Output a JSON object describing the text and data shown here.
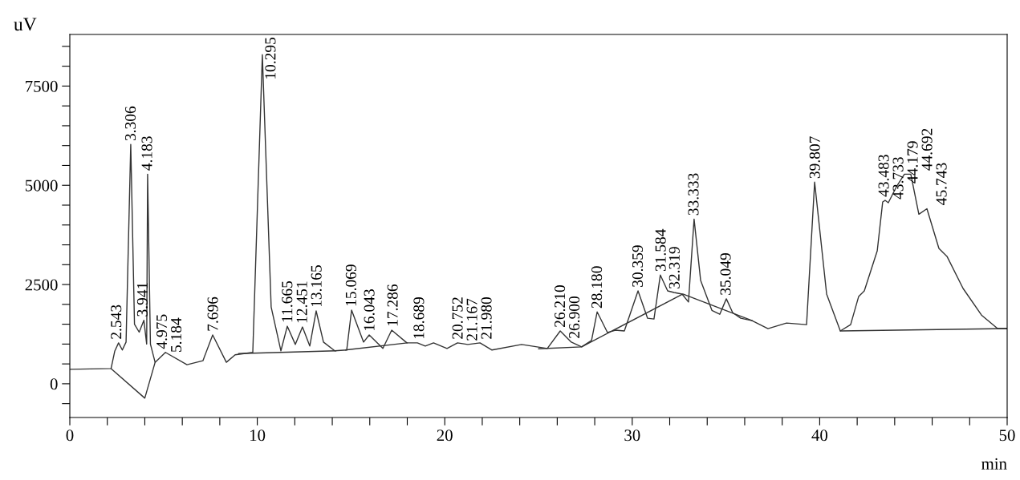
{
  "chart_data": {
    "type": "line",
    "xlabel": "min",
    "ylabel": "uV",
    "xlim": [
      0,
      50
    ],
    "ylim": [
      -850,
      8800
    ],
    "xticks": [
      0,
      {
        "value": 2,
        "label": null
      },
      {
        "value": 4,
        "label": null
      },
      {
        "value": 6,
        "label": null
      },
      {
        "value": 8,
        "label": null
      },
      10,
      {
        "value": 12,
        "label": null
      },
      {
        "value": 14,
        "label": null
      },
      {
        "value": 16,
        "label": null
      },
      {
        "value": 18,
        "label": null
      },
      20,
      {
        "value": 22,
        "label": null
      },
      {
        "value": 24,
        "label": null
      },
      {
        "value": 26,
        "label": null
      },
      {
        "value": 28,
        "label": null
      },
      30,
      {
        "value": 32,
        "label": null
      },
      {
        "value": 34,
        "label": null
      },
      {
        "value": 36,
        "label": null
      },
      {
        "value": 38,
        "label": null
      },
      40,
      {
        "value": 42,
        "label": null
      },
      {
        "value": 44,
        "label": null
      },
      {
        "value": 46,
        "label": null
      },
      {
        "value": 48,
        "label": null
      },
      50
    ],
    "yticks": [
      {
        "value": -500,
        "label": null
      },
      0,
      {
        "value": 500,
        "label": null
      },
      {
        "value": 1000,
        "label": null
      },
      {
        "value": 1500,
        "label": null
      },
      {
        "value": 2000,
        "label": null
      },
      2500,
      {
        "value": 3000,
        "label": null
      },
      {
        "value": 3500,
        "label": null
      },
      {
        "value": 4000,
        "label": null
      },
      {
        "value": 4500,
        "label": null
      },
      5000,
      {
        "value": 5500,
        "label": null
      },
      {
        "value": 6000,
        "label": null
      },
      {
        "value": 6500,
        "label": null
      },
      {
        "value": 7000,
        "label": null
      },
      7500,
      {
        "value": 8000,
        "label": null
      },
      {
        "value": 8500,
        "label": null
      }
    ],
    "grid": false,
    "series": [
      {
        "color": "#333333",
        "x": [
          0,
          2.2,
          2.4,
          2.6,
          2.8,
          3.0,
          3.25,
          3.45,
          3.7,
          3.95,
          4.1,
          4.15,
          4.3,
          4.55,
          5.1,
          6.25,
          7.1,
          7.62,
          8.35,
          8.82,
          9.76,
          10.27,
          10.74,
          11.26,
          11.6,
          12.03,
          12.41,
          12.8,
          13.14,
          13.53,
          14.13,
          14.77,
          15.03,
          15.67,
          15.97,
          16.7,
          17.17,
          17.98,
          18.54,
          18.96,
          19.4,
          20.12,
          20.68,
          21.23,
          21.88,
          22.52,
          24.1,
          25.47,
          26.16,
          26.75,
          27.3,
          27.83,
          28.13,
          28.68,
          29.1,
          29.58,
          30.31,
          30.82,
          31.16,
          31.5,
          31.89,
          32.23,
          32.66,
          33.0,
          33.3,
          33.65,
          34.25,
          34.67,
          35.02,
          35.36,
          35.79,
          36.39,
          37.24,
          38.23,
          39.3,
          39.73,
          40.37,
          41.1,
          41.65,
          42.08,
          42.38,
          43.07,
          43.36,
          43.49,
          43.66,
          44.09,
          44.52,
          44.86,
          45.29,
          45.72,
          46.36,
          46.79,
          47.65,
          48.63,
          49.49,
          50
        ],
        "values": [
          363,
          383,
          827,
          1030,
          850,
          1050,
          6030,
          1500,
          1300,
          1600,
          1000,
          5280,
          1000,
          540,
          790,
          480,
          580,
          1230,
          540,
          730,
          790,
          8290,
          1935,
          830,
          1450,
          990,
          1430,
          950,
          1835,
          1050,
          830,
          850,
          1855,
          1050,
          1230,
          890,
          1350,
          1030,
          1030,
          950,
          1030,
          890,
          1030,
          990,
          1030,
          850,
          990,
          890,
          1330,
          1050,
          930,
          1090,
          1810,
          1290,
          1350,
          1330,
          2340,
          1650,
          1630,
          2740,
          2340,
          2300,
          2260,
          2060,
          4150,
          2600,
          1850,
          1750,
          2140,
          1790,
          1650,
          1590,
          1390,
          1530,
          1490,
          5080,
          2260,
          1330,
          1490,
          2200,
          2340,
          3350,
          4580,
          4620,
          4560,
          4960,
          5280,
          5280,
          4270,
          4410,
          3410,
          3210,
          2400,
          1730,
          1390,
          1390
        ]
      },
      {
        "color": "#333333",
        "x": [
          2.2,
          4.0,
          4.55,
          6.0,
          9.0,
          14.2,
          14.5,
          14.7,
          18.0,
          20.0,
          25.0,
          27.3,
          32.7,
          36.4,
          39.0,
          41.1,
          50
        ],
        "values": [
          383,
          -363,
          540,
          null,
          760,
          830,
          null,
          850,
          1030,
          null,
          880,
          930,
          2260,
          1590,
          null,
          1330,
          1390
        ]
      }
    ],
    "annotations": [
      {
        "text": "2.543",
        "x": 2.543,
        "y": 1030
      },
      {
        "text": "3.306",
        "x": 3.306,
        "y": 6030
      },
      {
        "text": "3.941",
        "x": 3.941,
        "y": 1600
      },
      {
        "text": "4.183",
        "x": 4.183,
        "y": 5280
      },
      {
        "text": "4.975",
        "x": 4.975,
        "y": 790
      },
      {
        "text": "5.184",
        "x": 5.184,
        "y": 700
      },
      {
        "text": "7.696",
        "x": 7.696,
        "y": 1230
      },
      {
        "text": "10.295",
        "x": 10.295,
        "y": 8290
      },
      {
        "text": "11.665",
        "x": 11.665,
        "y": 1450
      },
      {
        "text": "12.451",
        "x": 12.451,
        "y": 1430
      },
      {
        "text": "13.165",
        "x": 13.165,
        "y": 1835
      },
      {
        "text": "15.069",
        "x": 15.069,
        "y": 1855
      },
      {
        "text": "16.043",
        "x": 16.043,
        "y": 1230
      },
      {
        "text": "17.286",
        "x": 17.286,
        "y": 1350
      },
      {
        "text": "18.689",
        "x": 18.689,
        "y": 1030
      },
      {
        "text": "20.752",
        "x": 20.752,
        "y": 1030
      },
      {
        "text": "21.167",
        "x": 21.167,
        "y": 990
      },
      {
        "text": "21.980",
        "x": 21.98,
        "y": 1030
      },
      {
        "text": "26.210",
        "x": 26.21,
        "y": 1330
      },
      {
        "text": "26.900",
        "x": 26.9,
        "y": 1050
      },
      {
        "text": "28.180",
        "x": 28.18,
        "y": 1810
      },
      {
        "text": "30.359",
        "x": 30.359,
        "y": 2340
      },
      {
        "text": "31.584",
        "x": 31.584,
        "y": 2740
      },
      {
        "text": "32.319",
        "x": 32.319,
        "y": 2300
      },
      {
        "text": "33.333",
        "x": 33.333,
        "y": 4150
      },
      {
        "text": "35.049",
        "x": 35.049,
        "y": 2140
      },
      {
        "text": "39.807",
        "x": 39.807,
        "y": 5080
      },
      {
        "text": "43.483",
        "x": 43.483,
        "y": 4620
      },
      {
        "text": "43.733",
        "x": 43.733,
        "y": 4560
      },
      {
        "text": "44.179",
        "x": 44.179,
        "y": 4960
      },
      {
        "text": "44.692",
        "x": 44.692,
        "y": 5280
      },
      {
        "text": "45.743",
        "x": 45.743,
        "y": 4410
      }
    ]
  }
}
